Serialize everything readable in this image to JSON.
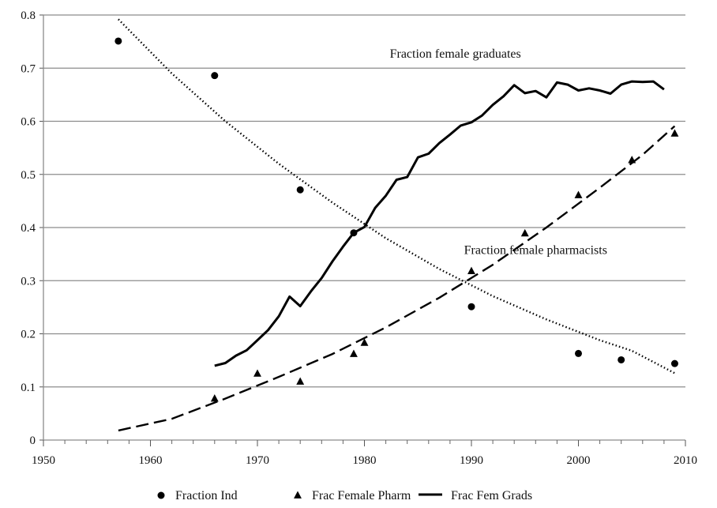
{
  "chart_data": {
    "type": "scatter",
    "title": "",
    "xlabel": "",
    "ylabel": "",
    "xlim": [
      1950,
      2010
    ],
    "ylim": [
      0,
      0.8
    ],
    "x_ticks": [
      1950,
      1960,
      1970,
      1980,
      1990,
      2000,
      2010
    ],
    "y_ticks": [
      0,
      0.1,
      0.2,
      0.3,
      0.4,
      0.5,
      0.6,
      0.7,
      0.8
    ],
    "grid": "horizontal",
    "legend_position": "bottom",
    "series": [
      {
        "name": "Fraction Ind",
        "marker": "circle",
        "points": [
          [
            1957,
            0.751
          ],
          [
            1966,
            0.686
          ],
          [
            1974,
            0.471
          ],
          [
            1979,
            0.39
          ],
          [
            1990,
            0.251
          ],
          [
            2000,
            0.163
          ],
          [
            2004,
            0.151
          ],
          [
            2009,
            0.144
          ]
        ]
      },
      {
        "name": "Frac Female Pharm",
        "marker": "triangle",
        "points": [
          [
            1966,
            0.078
          ],
          [
            1970,
            0.125
          ],
          [
            1974,
            0.11
          ],
          [
            1979,
            0.162
          ],
          [
            1980,
            0.183
          ],
          [
            1990,
            0.318
          ],
          [
            1995,
            0.389
          ],
          [
            2000,
            0.461
          ],
          [
            2005,
            0.527
          ],
          [
            2009,
            0.577
          ]
        ]
      },
      {
        "name": "Frac Fem Grads",
        "marker": "line",
        "points": [
          [
            1966,
            0.14
          ],
          [
            1967,
            0.145
          ],
          [
            1968,
            0.159
          ],
          [
            1969,
            0.169
          ],
          [
            1970,
            0.188
          ],
          [
            1971,
            0.207
          ],
          [
            1972,
            0.233
          ],
          [
            1973,
            0.27
          ],
          [
            1974,
            0.252
          ],
          [
            1975,
            0.28
          ],
          [
            1976,
            0.305
          ],
          [
            1977,
            0.336
          ],
          [
            1978,
            0.364
          ],
          [
            1979,
            0.39
          ],
          [
            1980,
            0.401
          ],
          [
            1981,
            0.437
          ],
          [
            1982,
            0.46
          ],
          [
            1983,
            0.49
          ],
          [
            1984,
            0.495
          ],
          [
            1985,
            0.532
          ],
          [
            1986,
            0.539
          ],
          [
            1987,
            0.559
          ],
          [
            1988,
            0.575
          ],
          [
            1989,
            0.592
          ],
          [
            1990,
            0.598
          ],
          [
            1991,
            0.611
          ],
          [
            1992,
            0.631
          ],
          [
            1993,
            0.647
          ],
          [
            1994,
            0.668
          ],
          [
            1995,
            0.653
          ],
          [
            1996,
            0.657
          ],
          [
            1997,
            0.645
          ],
          [
            1998,
            0.673
          ],
          [
            1999,
            0.669
          ],
          [
            2000,
            0.658
          ],
          [
            2001,
            0.662
          ],
          [
            2002,
            0.658
          ],
          [
            2003,
            0.652
          ],
          [
            2004,
            0.669
          ],
          [
            2005,
            0.675
          ],
          [
            2006,
            0.674
          ],
          [
            2007,
            0.675
          ],
          [
            2008,
            0.66
          ]
        ]
      }
    ],
    "trendlines": [
      {
        "style": "dotted",
        "of": "Fraction Ind",
        "points": [
          [
            1957,
            0.792
          ],
          [
            1962,
            0.69
          ],
          [
            1967,
            0.6
          ],
          [
            1972,
            0.52
          ],
          [
            1977,
            0.447
          ],
          [
            1982,
            0.38
          ],
          [
            1987,
            0.322
          ],
          [
            1992,
            0.271
          ],
          [
            1997,
            0.227
          ],
          [
            2002,
            0.188
          ],
          [
            2005,
            0.168
          ],
          [
            2009,
            0.126
          ]
        ]
      },
      {
        "style": "dashed",
        "of": "Frac Female Pharm",
        "points": [
          [
            1957,
            0.018
          ],
          [
            1962,
            0.04
          ],
          [
            1967,
            0.078
          ],
          [
            1972,
            0.119
          ],
          [
            1977,
            0.162
          ],
          [
            1982,
            0.212
          ],
          [
            1987,
            0.268
          ],
          [
            1992,
            0.33
          ],
          [
            1997,
            0.4
          ],
          [
            2002,
            0.475
          ],
          [
            2006,
            0.537
          ],
          [
            2009,
            0.591
          ]
        ]
      }
    ],
    "annotations": [
      {
        "text": "Fraction female graduates",
        "x": 1988.5,
        "y": 0.72
      },
      {
        "text": "Fraction female pharmacists",
        "x": 1996,
        "y": 0.35
      }
    ]
  }
}
